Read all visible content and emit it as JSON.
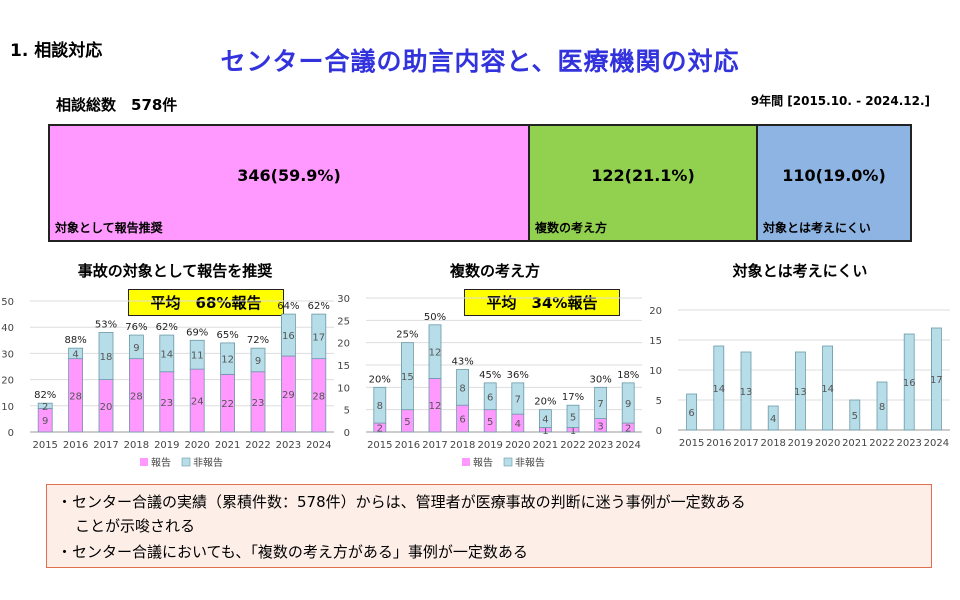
{
  "section_label": "1. 相談対応",
  "main_title": "センター合議の助言内容と、医療機関の対応",
  "total_label": "相談総数　578件",
  "period": "9年間 [2015.10. - 2024.12.]",
  "summary_bar": {
    "segments": [
      {
        "value": "346(59.9%)",
        "label": "対象として報告推奨",
        "color": "#ff99ff"
      },
      {
        "value": "122(21.1%)",
        "label": "複数の考え方",
        "color": "#92d050"
      },
      {
        "value": "110(19.0%)",
        "label": "対象とは考えにくい",
        "color": "#8db4e2"
      }
    ]
  },
  "colors": {
    "report": "#ff99ff",
    "nonreport": "#b7dde8"
  },
  "chart_data": [
    {
      "type": "bar",
      "title": "事故の対象として報告を推奨",
      "average": "平均　68%報告",
      "categories": [
        "2015",
        "2016",
        "2017",
        "2018",
        "2019",
        "2020",
        "2021",
        "2022",
        "2023",
        "2024"
      ],
      "series": [
        {
          "name": "報告",
          "values": [
            9,
            28,
            20,
            28,
            23,
            24,
            22,
            23,
            29,
            28
          ]
        },
        {
          "name": "非報告",
          "values": [
            2,
            4,
            18,
            9,
            14,
            11,
            12,
            9,
            16,
            17
          ]
        }
      ],
      "percent_labels": [
        "82%",
        "88%",
        "53%",
        "76%",
        "62%",
        "69%",
        "65%",
        "72%",
        "64%",
        "62%"
      ],
      "ylim": [
        0,
        50
      ],
      "yticks": [
        0,
        10,
        20,
        30,
        40,
        50
      ],
      "legend": [
        "報告",
        "非報告"
      ]
    },
    {
      "type": "bar",
      "title": "複数の考え方",
      "average": "平均　34%報告",
      "categories": [
        "2015",
        "2016",
        "2017",
        "2018",
        "2019",
        "2020",
        "2021",
        "2022",
        "2023",
        "2024"
      ],
      "series": [
        {
          "name": "報告",
          "values": [
            2,
            5,
            12,
            6,
            5,
            4,
            1,
            1,
            3,
            2
          ]
        },
        {
          "name": "非報告",
          "values": [
            8,
            15,
            12,
            8,
            6,
            7,
            4,
            5,
            7,
            9
          ]
        }
      ],
      "percent_labels": [
        "20%",
        "25%",
        "50%",
        "43%",
        "45%",
        "36%",
        "20%",
        "17%",
        "30%",
        "18%"
      ],
      "ylim": [
        0,
        30
      ],
      "yticks": [
        0,
        5,
        10,
        15,
        20,
        25,
        30
      ],
      "legend": [
        "報告",
        "非報告"
      ]
    },
    {
      "type": "bar",
      "title": "対象とは考えにくい",
      "categories": [
        "2015",
        "2016",
        "2017",
        "2018",
        "2019",
        "2020",
        "2021",
        "2022",
        "2023",
        "2024"
      ],
      "series": [
        {
          "name": "",
          "values": [
            6,
            14,
            13,
            4,
            13,
            14,
            5,
            8,
            16,
            17
          ]
        }
      ],
      "ylim": [
        0,
        20
      ],
      "yticks": [
        0,
        5,
        10,
        15,
        20
      ]
    }
  ],
  "notes": {
    "line1": "・センター合議の実績（累積件数：578件）からは、管理者が医療事故の判断に迷う事例が一定数ある",
    "line1b": "ことが示唆される",
    "line2": "・センター合議においても、「複数の考え方がある」事例が一定数ある"
  }
}
